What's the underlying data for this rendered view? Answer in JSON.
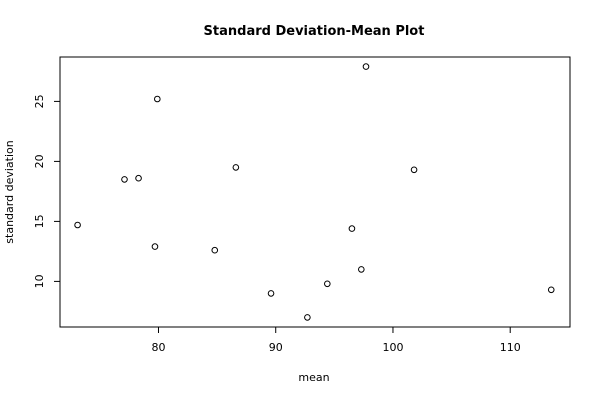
{
  "chart_data": {
    "type": "scatter",
    "title": "Standard Deviation-Mean Plot",
    "xlabel": "mean",
    "ylabel": "standard deviation",
    "xlim": [
      71.6,
      115.1
    ],
    "ylim": [
      6.2,
      28.7
    ],
    "x_ticks": [
      80,
      90,
      100,
      110
    ],
    "y_ticks": [
      10,
      15,
      20,
      25
    ],
    "grid": false,
    "points": [
      {
        "x": 73.1,
        "y": 14.7
      },
      {
        "x": 77.1,
        "y": 18.5
      },
      {
        "x": 78.3,
        "y": 18.6
      },
      {
        "x": 79.7,
        "y": 12.9
      },
      {
        "x": 79.9,
        "y": 25.2
      },
      {
        "x": 84.8,
        "y": 12.6
      },
      {
        "x": 86.6,
        "y": 19.5
      },
      {
        "x": 89.6,
        "y": 9.0
      },
      {
        "x": 92.7,
        "y": 7.0
      },
      {
        "x": 94.4,
        "y": 9.8
      },
      {
        "x": 96.5,
        "y": 14.4
      },
      {
        "x": 97.3,
        "y": 11.0
      },
      {
        "x": 97.7,
        "y": 27.9
      },
      {
        "x": 101.8,
        "y": 19.3
      },
      {
        "x": 113.5,
        "y": 9.3
      }
    ]
  }
}
